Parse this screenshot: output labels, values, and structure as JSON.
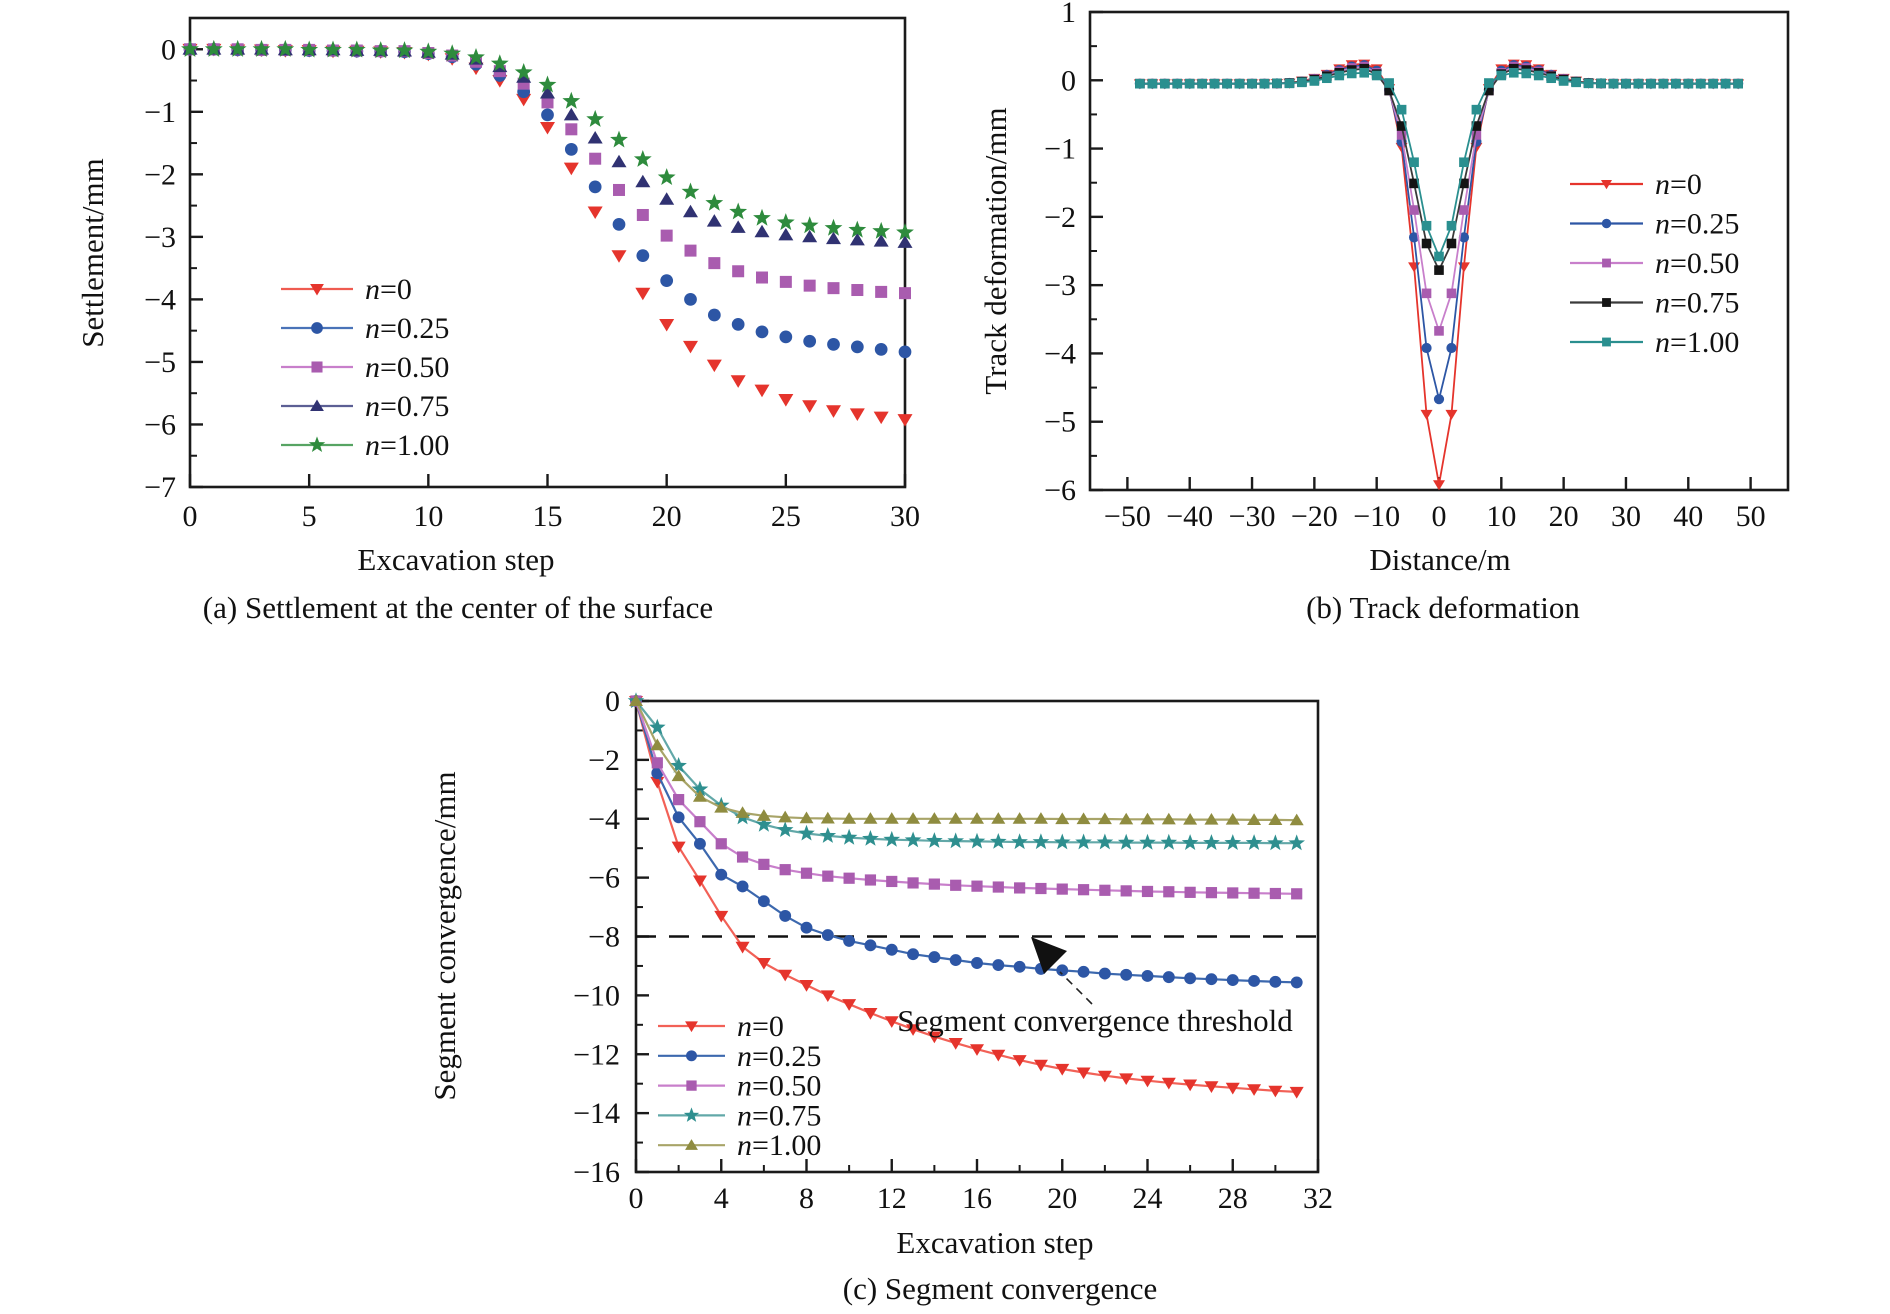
{
  "figure": {
    "background": "#ffffff",
    "frame_color": "#1a1a1a"
  },
  "chart_data": [
    {
      "id": "a",
      "type": "scatter",
      "caption": "(a) Settlement at the center of the surface",
      "xlabel": "Excavation step",
      "ylabel": "Settlement/mm",
      "xlim": [
        0,
        30
      ],
      "ylim": [
        0.5,
        -7
      ],
      "xticks": [
        0,
        5,
        10,
        15,
        20,
        25,
        30
      ],
      "yticks": [
        0,
        -1,
        -2,
        -3,
        -4,
        -5,
        -6,
        -7
      ],
      "x_minor_step": null,
      "y_minor_step": 0.5,
      "legend_position": "inside-lower-left",
      "x": [
        0,
        1,
        2,
        3,
        4,
        5,
        6,
        7,
        8,
        9,
        10,
        11,
        12,
        13,
        14,
        15,
        16,
        17,
        18,
        19,
        20,
        21,
        22,
        23,
        24,
        25,
        26,
        27,
        28,
        29,
        30
      ],
      "series": [
        {
          "name": "n=0",
          "marker": "triangle-down",
          "color": "#e5342c",
          "line_color": "#ef5b50",
          "y": [
            0,
            0,
            -0.01,
            -0.01,
            -0.02,
            -0.02,
            -0.03,
            -0.03,
            -0.04,
            -0.05,
            -0.08,
            -0.15,
            -0.3,
            -0.5,
            -0.8,
            -1.25,
            -1.9,
            -2.6,
            -3.3,
            -3.9,
            -4.4,
            -4.75,
            -5.05,
            -5.3,
            -5.45,
            -5.6,
            -5.7,
            -5.78,
            -5.83,
            -5.88,
            -5.92
          ]
        },
        {
          "name": "n=0.25",
          "marker": "circle",
          "color": "#2d56a5",
          "line_color": "#4a73b8",
          "y": [
            0,
            0,
            -0.01,
            -0.01,
            -0.01,
            -0.02,
            -0.02,
            -0.03,
            -0.03,
            -0.04,
            -0.07,
            -0.12,
            -0.24,
            -0.42,
            -0.68,
            -1.05,
            -1.6,
            -2.2,
            -2.8,
            -3.3,
            -3.7,
            -4.0,
            -4.25,
            -4.4,
            -4.52,
            -4.6,
            -4.67,
            -4.72,
            -4.76,
            -4.8,
            -4.84
          ]
        },
        {
          "name": "n=0.50",
          "marker": "square",
          "color": "#a95caf",
          "line_color": "#c87fcb",
          "y": [
            0,
            0,
            0,
            -0.01,
            -0.01,
            -0.01,
            -0.02,
            -0.02,
            -0.03,
            -0.03,
            -0.06,
            -0.1,
            -0.2,
            -0.35,
            -0.55,
            -0.85,
            -1.28,
            -1.75,
            -2.25,
            -2.65,
            -2.98,
            -3.22,
            -3.42,
            -3.55,
            -3.65,
            -3.72,
            -3.78,
            -3.82,
            -3.85,
            -3.88,
            -3.9
          ]
        },
        {
          "name": "n=0.75",
          "marker": "triangle-up",
          "color": "#303272",
          "line_color": "#5c5f94",
          "y": [
            0,
            0,
            0,
            0,
            -0.01,
            -0.01,
            -0.01,
            -0.02,
            -0.02,
            -0.03,
            -0.05,
            -0.08,
            -0.16,
            -0.28,
            -0.45,
            -0.7,
            -1.05,
            -1.42,
            -1.8,
            -2.12,
            -2.4,
            -2.6,
            -2.75,
            -2.85,
            -2.92,
            -2.97,
            -3.0,
            -3.03,
            -3.05,
            -3.07,
            -3.09
          ]
        },
        {
          "name": "n=1.00",
          "marker": "star",
          "color": "#2e8b3d",
          "line_color": "#57a463",
          "y": [
            0,
            0,
            0,
            0,
            0,
            -0.01,
            -0.01,
            -0.01,
            -0.02,
            -0.02,
            -0.04,
            -0.07,
            -0.13,
            -0.23,
            -0.37,
            -0.57,
            -0.83,
            -1.12,
            -1.45,
            -1.76,
            -2.05,
            -2.28,
            -2.46,
            -2.6,
            -2.7,
            -2.77,
            -2.82,
            -2.86,
            -2.89,
            -2.91,
            -2.93
          ]
        }
      ]
    },
    {
      "id": "b",
      "type": "line",
      "caption": "(b) Track deformation",
      "xlabel": "Distance/m",
      "ylabel": "Track deformation/mm",
      "xlim": [
        -56,
        56
      ],
      "ylim": [
        1,
        -6
      ],
      "xticks": [
        -50,
        -40,
        -30,
        -20,
        -10,
        0,
        10,
        20,
        30,
        40,
        50
      ],
      "yticks": [
        1,
        0,
        -1,
        -2,
        -3,
        -4,
        -5,
        -6
      ],
      "x_minor_step": null,
      "y_minor_step": 0.5,
      "legend_position": "inside-right",
      "x": [
        -48,
        -46,
        -44,
        -42,
        -40,
        -38,
        -36,
        -34,
        -32,
        -30,
        -28,
        -26,
        -24,
        -22,
        -20,
        -18,
        -16,
        -14,
        -12,
        -10,
        -8,
        -6,
        -4,
        -2,
        0,
        2,
        4,
        6,
        8,
        10,
        12,
        14,
        16,
        18,
        20,
        22,
        24,
        26,
        28,
        30,
        32,
        34,
        36,
        38,
        40,
        42,
        44,
        46,
        48
      ],
      "series": [
        {
          "name": "n=0",
          "marker": "triangle-down",
          "color": "#e5342c",
          "line_color": "#e5342c",
          "y": [
            -0.05,
            -0.05,
            -0.05,
            -0.05,
            -0.05,
            -0.05,
            -0.05,
            -0.05,
            -0.05,
            -0.05,
            -0.05,
            -0.045,
            -0.04,
            -0.01,
            0.03,
            0.09,
            0.17,
            0.23,
            0.24,
            0.17,
            -0.12,
            -0.98,
            -2.73,
            -4.89,
            -5.92,
            -4.89,
            -2.73,
            -0.98,
            -0.12,
            0.17,
            0.24,
            0.23,
            0.17,
            0.09,
            0.03,
            -0.01,
            -0.04,
            -0.045,
            -0.05,
            -0.05,
            -0.05,
            -0.05,
            -0.05,
            -0.05,
            -0.05,
            -0.05,
            -0.05,
            -0.05,
            -0.05
          ]
        },
        {
          "name": "n=0.25",
          "marker": "circle",
          "color": "#2d56a5",
          "line_color": "#2d56a5",
          "y": [
            -0.05,
            -0.05,
            -0.05,
            -0.05,
            -0.05,
            -0.05,
            -0.05,
            -0.05,
            -0.05,
            -0.05,
            -0.05,
            -0.045,
            -0.04,
            -0.02,
            0.02,
            0.08,
            0.15,
            0.2,
            0.22,
            0.14,
            -0.14,
            -0.9,
            -2.3,
            -3.92,
            -4.67,
            -3.92,
            -2.3,
            -0.9,
            -0.14,
            0.14,
            0.22,
            0.2,
            0.15,
            0.08,
            0.02,
            -0.02,
            -0.04,
            -0.045,
            -0.05,
            -0.05,
            -0.05,
            -0.05,
            -0.05,
            -0.05,
            -0.05,
            -0.05,
            -0.05,
            -0.05,
            -0.05
          ]
        },
        {
          "name": "n=0.50",
          "marker": "square",
          "color": "#a95caf",
          "line_color": "#c87fcb",
          "y": [
            -0.05,
            -0.05,
            -0.05,
            -0.05,
            -0.05,
            -0.05,
            -0.05,
            -0.05,
            -0.05,
            -0.05,
            -0.05,
            -0.045,
            -0.04,
            -0.02,
            0.02,
            0.07,
            0.13,
            0.18,
            0.2,
            0.11,
            -0.15,
            -0.8,
            -1.9,
            -3.12,
            -3.67,
            -3.12,
            -1.9,
            -0.8,
            -0.15,
            0.11,
            0.2,
            0.18,
            0.13,
            0.07,
            0.02,
            -0.02,
            -0.04,
            -0.045,
            -0.05,
            -0.05,
            -0.05,
            -0.05,
            -0.05,
            -0.05,
            -0.05,
            -0.05,
            -0.05,
            -0.05,
            -0.05
          ]
        },
        {
          "name": "n=0.75",
          "marker": "square",
          "color": "#141414",
          "line_color": "#3a3a3a",
          "y": [
            -0.05,
            -0.05,
            -0.05,
            -0.05,
            -0.05,
            -0.05,
            -0.05,
            -0.05,
            -0.05,
            -0.05,
            -0.05,
            -0.045,
            -0.04,
            -0.02,
            0.01,
            0.06,
            0.11,
            0.15,
            0.17,
            0.09,
            -0.15,
            -0.67,
            -1.51,
            -2.39,
            -2.78,
            -2.39,
            -1.51,
            -0.67,
            -0.15,
            0.09,
            0.17,
            0.15,
            0.11,
            0.06,
            0.01,
            -0.02,
            -0.04,
            -0.045,
            -0.05,
            -0.05,
            -0.05,
            -0.05,
            -0.05,
            -0.05,
            -0.05,
            -0.05,
            -0.05,
            -0.05,
            -0.05
          ]
        },
        {
          "name": "n=1.00",
          "marker": "square",
          "color": "#2a8f8f",
          "line_color": "#2a8f8f",
          "y": [
            -0.05,
            -0.05,
            -0.05,
            -0.05,
            -0.05,
            -0.05,
            -0.05,
            -0.05,
            -0.05,
            -0.05,
            -0.05,
            -0.045,
            -0.045,
            -0.03,
            -0.01,
            0.03,
            0.07,
            0.1,
            0.11,
            0.07,
            -0.04,
            -0.43,
            -1.2,
            -2.13,
            -2.58,
            -2.13,
            -1.2,
            -0.43,
            -0.04,
            0.07,
            0.11,
            0.1,
            0.07,
            0.03,
            -0.01,
            -0.03,
            -0.045,
            -0.045,
            -0.05,
            -0.05,
            -0.05,
            -0.05,
            -0.05,
            -0.05,
            -0.05,
            -0.05,
            -0.05,
            -0.05,
            -0.05
          ]
        }
      ]
    },
    {
      "id": "c",
      "type": "line",
      "caption": "(c) Segment convergence",
      "xlabel": "Excavation step",
      "ylabel": "Segment convergence/mm",
      "xlim": [
        0,
        32
      ],
      "ylim": [
        0,
        -16
      ],
      "xticks": [
        0,
        4,
        8,
        12,
        16,
        20,
        24,
        28,
        32
      ],
      "yticks": [
        0,
        -2,
        -4,
        -6,
        -8,
        -10,
        -12,
        -14,
        -16
      ],
      "x_minor_step": 2,
      "y_minor_step": 1,
      "legend_position": "inside-lower-left",
      "threshold": {
        "value": -8,
        "style": "dashed",
        "color": "#111111"
      },
      "annotation": {
        "text": "Segment convergence threshold"
      },
      "x": [
        0,
        1,
        2,
        3,
        4,
        5,
        6,
        7,
        8,
        9,
        10,
        11,
        12,
        13,
        14,
        15,
        16,
        17,
        18,
        19,
        20,
        21,
        22,
        23,
        24,
        25,
        26,
        27,
        28,
        29,
        30,
        31
      ],
      "series": [
        {
          "name": "n=0",
          "marker": "triangle-down",
          "color": "#e5342c",
          "line_color": "#f26157",
          "y": [
            0,
            -2.75,
            -4.95,
            -6.1,
            -7.3,
            -8.35,
            -8.9,
            -9.3,
            -9.65,
            -10.0,
            -10.3,
            -10.6,
            -10.88,
            -11.15,
            -11.4,
            -11.62,
            -11.83,
            -12.02,
            -12.2,
            -12.36,
            -12.5,
            -12.62,
            -12.73,
            -12.82,
            -12.9,
            -12.97,
            -13.03,
            -13.09,
            -13.14,
            -13.19,
            -13.24,
            -13.28
          ]
        },
        {
          "name": "n=0.25",
          "marker": "circle",
          "color": "#2d56a5",
          "line_color": "#3c68ae",
          "y": [
            0,
            -2.45,
            -3.95,
            -4.85,
            -5.9,
            -6.3,
            -6.8,
            -7.3,
            -7.7,
            -7.95,
            -8.15,
            -8.3,
            -8.45,
            -8.6,
            -8.7,
            -8.8,
            -8.9,
            -8.97,
            -9.03,
            -9.1,
            -9.15,
            -9.2,
            -9.26,
            -9.3,
            -9.34,
            -9.38,
            -9.42,
            -9.45,
            -9.48,
            -9.51,
            -9.54,
            -9.56
          ]
        },
        {
          "name": "n=0.50",
          "marker": "square",
          "color": "#a95caf",
          "line_color": "#c87fcb",
          "y": [
            0,
            -2.1,
            -3.35,
            -4.1,
            -4.85,
            -5.3,
            -5.55,
            -5.73,
            -5.85,
            -5.95,
            -6.02,
            -6.08,
            -6.13,
            -6.18,
            -6.22,
            -6.26,
            -6.29,
            -6.32,
            -6.35,
            -6.37,
            -6.39,
            -6.41,
            -6.43,
            -6.45,
            -6.47,
            -6.48,
            -6.5,
            -6.51,
            -6.52,
            -6.53,
            -6.54,
            -6.55
          ]
        },
        {
          "name": "n=0.75",
          "marker": "star",
          "color": "#2e8f8f",
          "line_color": "#62a8a8",
          "y": [
            0,
            -0.9,
            -2.2,
            -3.0,
            -3.55,
            -3.95,
            -4.2,
            -4.38,
            -4.5,
            -4.58,
            -4.64,
            -4.68,
            -4.71,
            -4.73,
            -4.75,
            -4.76,
            -4.77,
            -4.78,
            -4.79,
            -4.79,
            -4.8,
            -4.8,
            -4.8,
            -4.81,
            -4.81,
            -4.81,
            -4.82,
            -4.82,
            -4.82,
            -4.82,
            -4.83,
            -4.83
          ]
        },
        {
          "name": "n=1.00",
          "marker": "triangle-up",
          "color": "#8f8c40",
          "line_color": "#a8a468",
          "y": [
            0,
            -1.5,
            -2.55,
            -3.25,
            -3.62,
            -3.8,
            -3.9,
            -3.95,
            -3.98,
            -3.99,
            -4.0,
            -4.0,
            -4.0,
            -4.0,
            -4.0,
            -4.0,
            -4.0,
            -4.0,
            -4.0,
            -4.0,
            -4.01,
            -4.01,
            -4.01,
            -4.02,
            -4.02,
            -4.02,
            -4.03,
            -4.03,
            -4.03,
            -4.04,
            -4.04,
            -4.05
          ]
        }
      ]
    }
  ]
}
